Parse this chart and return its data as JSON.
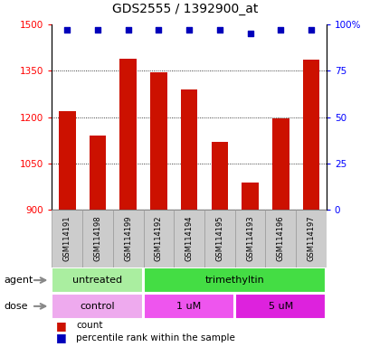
{
  "title": "GDS2555 / 1392900_at",
  "samples": [
    "GSM114191",
    "GSM114198",
    "GSM114199",
    "GSM114192",
    "GSM114194",
    "GSM114195",
    "GSM114193",
    "GSM114196",
    "GSM114197"
  ],
  "counts": [
    1218,
    1140,
    1390,
    1345,
    1290,
    1120,
    990,
    1195,
    1385
  ],
  "percentiles": [
    97,
    97,
    97,
    97,
    97,
    97,
    95,
    97,
    97
  ],
  "ylim_left": [
    900,
    1500
  ],
  "ylim_right": [
    0,
    100
  ],
  "yticks_left": [
    900,
    1050,
    1200,
    1350,
    1500
  ],
  "yticks_right": [
    0,
    25,
    50,
    75,
    100
  ],
  "ytick_right_labels": [
    "0",
    "25",
    "50",
    "75",
    "100%"
  ],
  "bar_color": "#cc1100",
  "dot_color": "#0000bb",
  "agent_labels": [
    {
      "text": "untreated",
      "start": 0,
      "end": 3,
      "color": "#aaeea0"
    },
    {
      "text": "trimethyltin",
      "start": 3,
      "end": 9,
      "color": "#44dd44"
    }
  ],
  "dose_labels": [
    {
      "text": "control",
      "start": 0,
      "end": 3,
      "color": "#eeaaee"
    },
    {
      "text": "1 uM",
      "start": 3,
      "end": 6,
      "color": "#ee55ee"
    },
    {
      "text": "5 uM",
      "start": 6,
      "end": 9,
      "color": "#dd22dd"
    }
  ],
  "legend_count_color": "#cc1100",
  "legend_dot_color": "#0000bb",
  "label_agent": "agent",
  "label_dose": "dose",
  "background_color": "#ffffff",
  "sample_area_color": "#cccccc",
  "sample_area_border": "#999999",
  "bar_width": 0.55
}
